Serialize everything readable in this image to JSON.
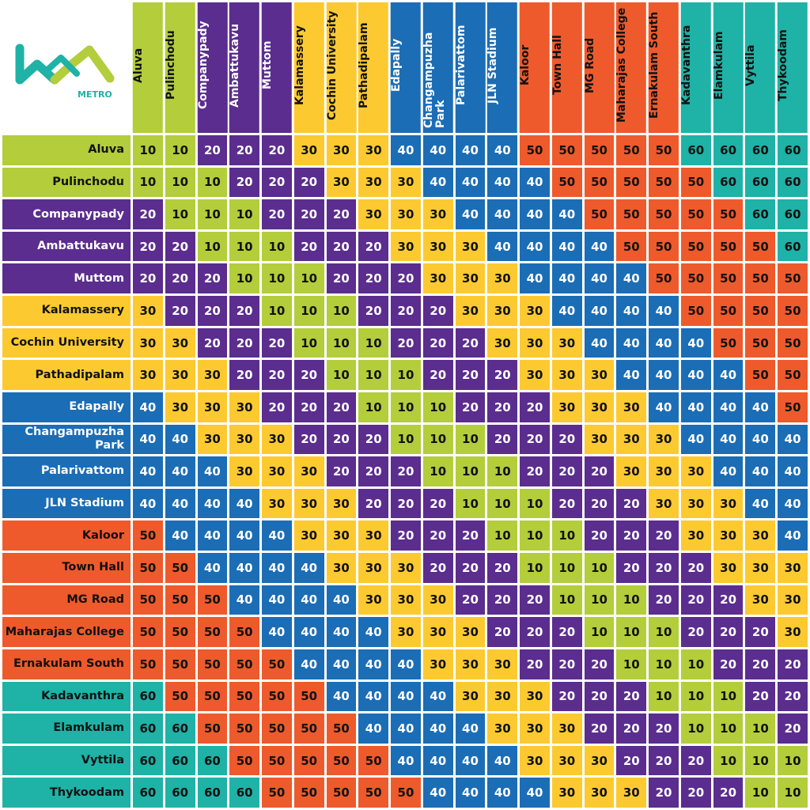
{
  "logo": {
    "label": "METRO"
  },
  "colors": {
    "10": "#b3cd3b",
    "20": "#5b2d8e",
    "30": "#fcca30",
    "40": "#1b6db6",
    "50": "#ee5a2c",
    "60": "#1fb2a6"
  },
  "table": {
    "stations": [
      "Aluva",
      "Pulinchodu",
      "Companypady",
      "Ambattukavu",
      "Muttom",
      "Kalamassery",
      "Cochin University",
      "Pathadipalam",
      "Edapally",
      "Changampuzha Park",
      "Palarivattom",
      "JLN Stadium",
      "Kaloor",
      "Town Hall",
      "MG Road",
      "Maharajas College",
      "Ernakulam South",
      "Kadavanthra",
      "Elamkulam",
      "Vyttila",
      "Thykoodam"
    ],
    "rows": [
      [
        10,
        10,
        20,
        20,
        20,
        30,
        30,
        30,
        40,
        40,
        40,
        40,
        50,
        50,
        50,
        50,
        50,
        60,
        60,
        60,
        60
      ],
      [
        10,
        10,
        10,
        20,
        20,
        20,
        30,
        30,
        30,
        40,
        40,
        40,
        40,
        50,
        50,
        50,
        50,
        50,
        60,
        60,
        60
      ],
      [
        20,
        10,
        10,
        10,
        20,
        20,
        20,
        30,
        30,
        30,
        40,
        40,
        40,
        40,
        50,
        50,
        50,
        50,
        50,
        60,
        60
      ],
      [
        20,
        20,
        10,
        10,
        10,
        20,
        20,
        20,
        30,
        30,
        30,
        40,
        40,
        40,
        40,
        50,
        50,
        50,
        50,
        50,
        60
      ],
      [
        20,
        20,
        20,
        10,
        10,
        10,
        20,
        20,
        20,
        30,
        30,
        30,
        40,
        40,
        40,
        40,
        50,
        50,
        50,
        50,
        50
      ],
      [
        30,
        20,
        20,
        20,
        10,
        10,
        10,
        20,
        20,
        20,
        30,
        30,
        30,
        40,
        40,
        40,
        40,
        50,
        50,
        50,
        50
      ],
      [
        30,
        30,
        20,
        20,
        20,
        10,
        10,
        10,
        20,
        20,
        20,
        30,
        30,
        30,
        40,
        40,
        40,
        40,
        50,
        50,
        50
      ],
      [
        30,
        30,
        30,
        20,
        20,
        20,
        10,
        10,
        10,
        20,
        20,
        20,
        30,
        30,
        30,
        40,
        40,
        40,
        40,
        50,
        50
      ],
      [
        40,
        30,
        30,
        30,
        20,
        20,
        20,
        10,
        10,
        10,
        20,
        20,
        20,
        30,
        30,
        30,
        40,
        40,
        40,
        40,
        50
      ],
      [
        40,
        40,
        30,
        30,
        30,
        20,
        20,
        20,
        10,
        10,
        10,
        20,
        20,
        20,
        30,
        30,
        30,
        40,
        40,
        40,
        40
      ],
      [
        40,
        40,
        40,
        30,
        30,
        30,
        20,
        20,
        20,
        10,
        10,
        10,
        20,
        20,
        20,
        30,
        30,
        30,
        40,
        40,
        40
      ],
      [
        40,
        40,
        40,
        40,
        30,
        30,
        30,
        20,
        20,
        20,
        10,
        10,
        10,
        20,
        20,
        20,
        30,
        30,
        30,
        40,
        40
      ],
      [
        50,
        40,
        40,
        40,
        40,
        30,
        30,
        30,
        20,
        20,
        20,
        10,
        10,
        10,
        20,
        20,
        20,
        30,
        30,
        30,
        40
      ],
      [
        50,
        50,
        40,
        40,
        40,
        40,
        30,
        30,
        30,
        20,
        20,
        20,
        10,
        10,
        10,
        20,
        20,
        20,
        30,
        30,
        30
      ],
      [
        50,
        50,
        50,
        40,
        40,
        40,
        40,
        30,
        30,
        30,
        20,
        20,
        20,
        10,
        10,
        10,
        20,
        20,
        20,
        30,
        30
      ],
      [
        50,
        50,
        50,
        50,
        40,
        40,
        40,
        40,
        30,
        30,
        30,
        20,
        20,
        20,
        10,
        10,
        10,
        20,
        20,
        20,
        30
      ],
      [
        50,
        50,
        50,
        50,
        50,
        40,
        40,
        40,
        40,
        30,
        30,
        30,
        20,
        20,
        20,
        10,
        10,
        10,
        20,
        20,
        20
      ],
      [
        60,
        50,
        50,
        50,
        50,
        50,
        40,
        40,
        40,
        40,
        30,
        30,
        30,
        20,
        20,
        20,
        10,
        10,
        10,
        20,
        20
      ],
      [
        60,
        60,
        50,
        50,
        50,
        50,
        50,
        40,
        40,
        40,
        40,
        30,
        30,
        30,
        20,
        20,
        20,
        10,
        10,
        10,
        20
      ],
      [
        60,
        60,
        60,
        50,
        50,
        50,
        50,
        50,
        40,
        40,
        40,
        40,
        30,
        30,
        30,
        20,
        20,
        20,
        10,
        10,
        10
      ],
      [
        60,
        60,
        60,
        60,
        50,
        50,
        50,
        50,
        50,
        40,
        40,
        40,
        40,
        30,
        30,
        30,
        20,
        20,
        20,
        10,
        10
      ]
    ]
  }
}
